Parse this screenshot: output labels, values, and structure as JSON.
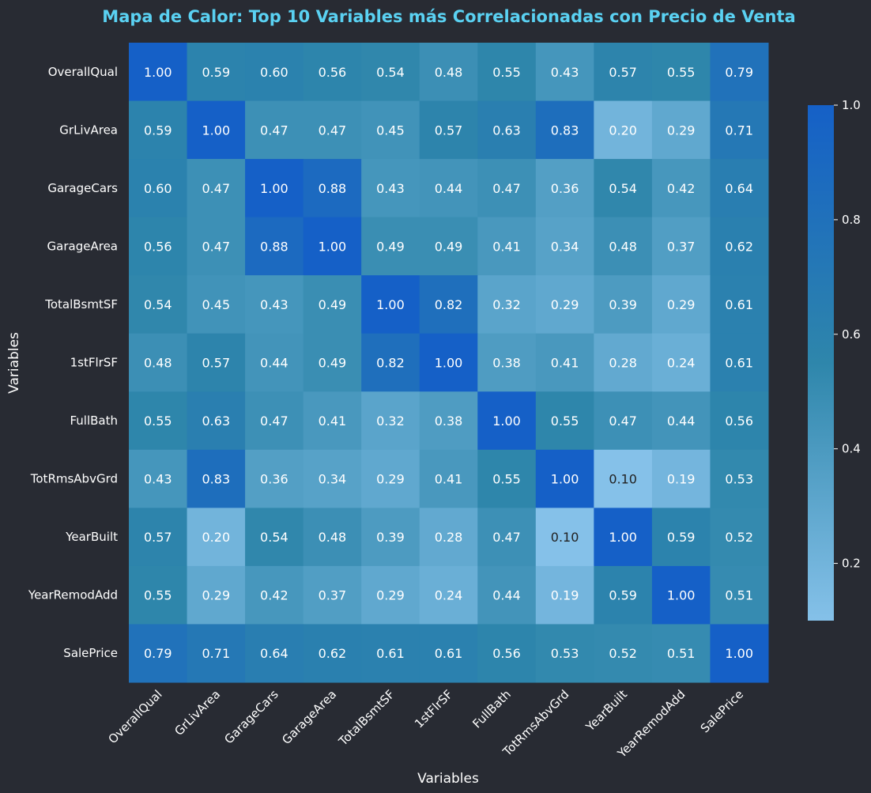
{
  "chart_data": {
    "type": "heatmap",
    "title": "Mapa de Calor: Top 10 Variables más Correlacionadas con Precio de Venta",
    "xlabel": "Variables",
    "ylabel": "Variables",
    "labels": [
      "OverallQual",
      "GrLivArea",
      "GarageCars",
      "GarageArea",
      "TotalBsmtSF",
      "1stFlrSF",
      "FullBath",
      "TotRmsAbvGrd",
      "YearBuilt",
      "YearRemodAdd",
      "SalePrice"
    ],
    "matrix": [
      [
        1.0,
        0.59,
        0.6,
        0.56,
        0.54,
        0.48,
        0.55,
        0.43,
        0.57,
        0.55,
        0.79
      ],
      [
        0.59,
        1.0,
        0.47,
        0.47,
        0.45,
        0.57,
        0.63,
        0.83,
        0.2,
        0.29,
        0.71
      ],
      [
        0.6,
        0.47,
        1.0,
        0.88,
        0.43,
        0.44,
        0.47,
        0.36,
        0.54,
        0.42,
        0.64
      ],
      [
        0.56,
        0.47,
        0.88,
        1.0,
        0.49,
        0.49,
        0.41,
        0.34,
        0.48,
        0.37,
        0.62
      ],
      [
        0.54,
        0.45,
        0.43,
        0.49,
        1.0,
        0.82,
        0.32,
        0.29,
        0.39,
        0.29,
        0.61
      ],
      [
        0.48,
        0.57,
        0.44,
        0.49,
        0.82,
        1.0,
        0.38,
        0.41,
        0.28,
        0.24,
        0.61
      ],
      [
        0.55,
        0.63,
        0.47,
        0.41,
        0.32,
        0.38,
        1.0,
        0.55,
        0.47,
        0.44,
        0.56
      ],
      [
        0.43,
        0.83,
        0.36,
        0.34,
        0.29,
        0.41,
        0.55,
        1.0,
        0.1,
        0.19,
        0.53
      ],
      [
        0.57,
        0.2,
        0.54,
        0.48,
        0.39,
        0.28,
        0.47,
        0.1,
        1.0,
        0.59,
        0.52
      ],
      [
        0.55,
        0.29,
        0.42,
        0.37,
        0.29,
        0.24,
        0.44,
        0.19,
        0.59,
        1.0,
        0.51
      ],
      [
        0.79,
        0.71,
        0.64,
        0.62,
        0.61,
        0.61,
        0.56,
        0.53,
        0.52,
        0.51,
        1.0
      ]
    ],
    "colorbar": {
      "range": [
        0.1,
        1.0
      ],
      "ticks": [
        0.2,
        0.4,
        0.6,
        0.8,
        1.0
      ],
      "tick_labels": [
        "0.2",
        "0.4",
        "0.6",
        "0.8",
        "1.0"
      ]
    },
    "colors": {
      "low": "#85c1e9",
      "mid": "#2e86ab",
      "high": "#1560c7",
      "background": "#282b33",
      "title": "#5ad1f2",
      "text_light": "#ffffff",
      "text_dark": "#222222"
    }
  }
}
